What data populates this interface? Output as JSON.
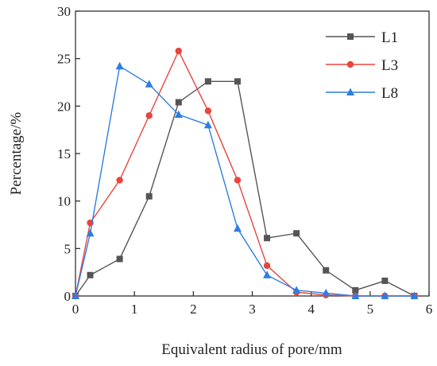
{
  "chart_data": {
    "type": "line",
    "xlabel": "Equivalent radius of pore/mm",
    "ylabel": "Percentage/%",
    "xlim": [
      0,
      6
    ],
    "ylim": [
      0,
      30
    ],
    "xticks": [
      0,
      1,
      2,
      3,
      4,
      5,
      6
    ],
    "yticks": [
      0,
      5,
      10,
      15,
      20,
      25,
      30
    ],
    "grid": false,
    "legend_position": "top-right",
    "series": [
      {
        "name": "L1",
        "color": "#555555",
        "marker": "square",
        "x": [
          0,
          0.25,
          0.75,
          1.25,
          1.75,
          2.25,
          2.75,
          3.25,
          3.75,
          4.25,
          4.75,
          5.25,
          5.75
        ],
        "y": [
          0,
          2.2,
          3.9,
          10.5,
          20.4,
          22.6,
          22.6,
          6.1,
          6.6,
          2.7,
          0.6,
          1.6,
          0
        ]
      },
      {
        "name": "L3",
        "color": "#e8453c",
        "marker": "circle",
        "x": [
          0,
          0.25,
          0.75,
          1.25,
          1.75,
          2.25,
          2.75,
          3.25,
          3.75,
          4.25,
          4.75,
          5.25,
          5.75
        ],
        "y": [
          0,
          7.7,
          12.2,
          19.0,
          25.8,
          19.5,
          12.2,
          3.2,
          0.4,
          0.1,
          0,
          0,
          0
        ]
      },
      {
        "name": "L8",
        "color": "#2f7de1",
        "marker": "triangle",
        "x": [
          0,
          0.25,
          0.75,
          1.25,
          1.75,
          2.25,
          2.75,
          3.25,
          3.75,
          4.25,
          4.75,
          5.25,
          5.75
        ],
        "y": [
          0,
          6.6,
          24.2,
          22.3,
          19.1,
          18.0,
          7.1,
          2.2,
          0.6,
          0.3,
          0,
          0,
          0
        ]
      }
    ]
  }
}
